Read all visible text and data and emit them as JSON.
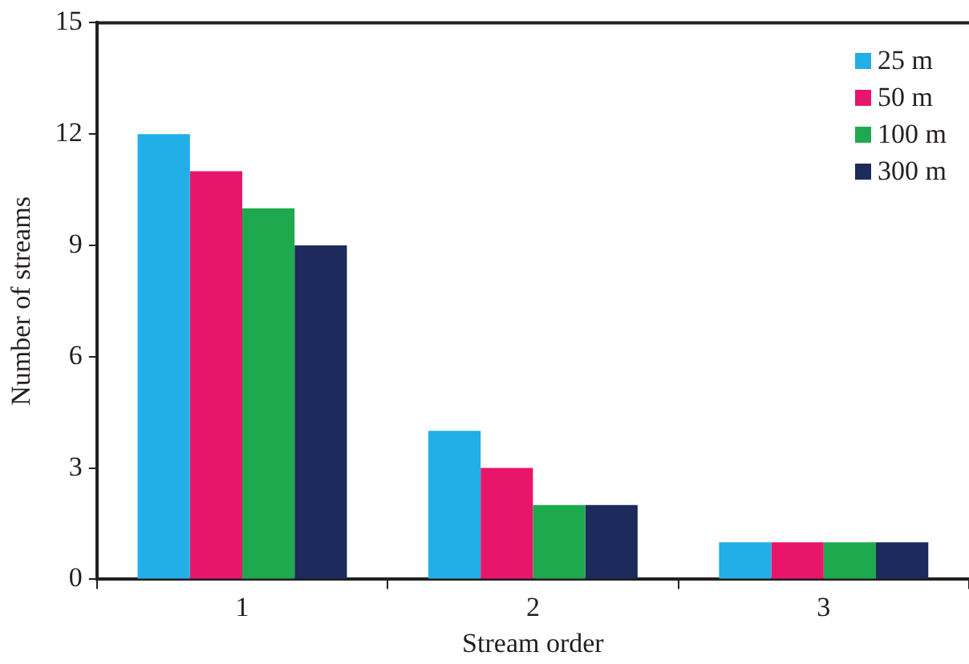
{
  "chart_data": {
    "type": "bar",
    "xlabel": "Stream order",
    "ylabel": "Number of streams",
    "categories": [
      "1",
      "2",
      "3"
    ],
    "series": [
      {
        "name": "25 m",
        "color": "#22aee6",
        "values": [
          12,
          4,
          1
        ]
      },
      {
        "name": "50 m",
        "color": "#e8166b",
        "values": [
          11,
          3,
          1
        ]
      },
      {
        "name": "100 m",
        "color": "#1fa94f",
        "values": [
          10,
          2,
          1
        ]
      },
      {
        "name": "300 m",
        "color": "#1d2a5c",
        "values": [
          9,
          2,
          1
        ]
      }
    ],
    "ylim": [
      0,
      15
    ],
    "yticks": [
      0,
      3,
      6,
      9,
      12,
      15
    ],
    "grid": false,
    "legend": "top right"
  }
}
